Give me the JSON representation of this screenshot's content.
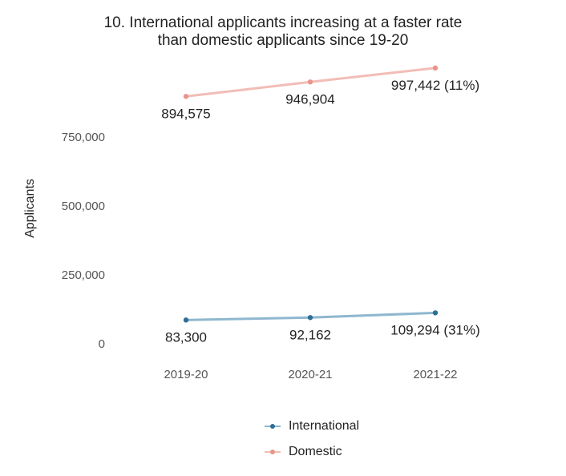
{
  "chart_data": {
    "type": "line",
    "title_lines": [
      "10. International applicants increasing at a faster rate",
      "than domestic applicants since 19-20"
    ],
    "xlabel": "",
    "ylabel": "Applicants",
    "categories": [
      "2019-20",
      "2020-21",
      "2021-22"
    ],
    "y_ticks": [
      0,
      250000,
      500000,
      750000
    ],
    "y_tick_labels": [
      "0",
      "250,000",
      "500,000",
      "750,000"
    ],
    "ylim": [
      0,
      1000000
    ],
    "grid": false,
    "legend_position": "bottom",
    "series": [
      {
        "name": "International",
        "color": "#2e6f95",
        "line_color": "#8fb7cf",
        "values": [
          83300,
          92162,
          109294
        ],
        "data_labels": [
          "83,300",
          "92,162",
          "109,294 (31%)"
        ]
      },
      {
        "name": "Domestic",
        "color": "#e8948a",
        "line_color": "#f2bdb6",
        "values": [
          894575,
          946904,
          997442
        ],
        "data_labels": [
          "894,575",
          "946,904",
          "997,442 (11%)"
        ]
      }
    ]
  }
}
